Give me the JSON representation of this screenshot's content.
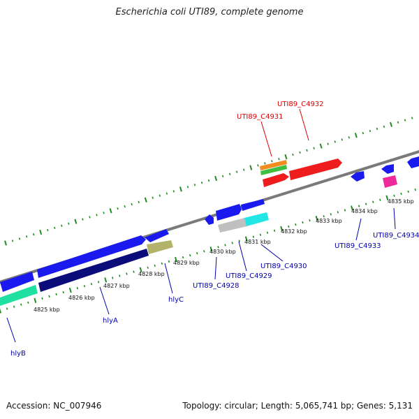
{
  "title": "Escherichia coli UTI89, complete genome",
  "footer": {
    "accession": "Accession: NC_007946",
    "topology": "Topology: circular; Length: 5,065,741 bp; Genes: 5,131"
  },
  "colors": {
    "backbone": "#7a7a7a",
    "tick": "#1f8a1f",
    "forward_label": "#dd0000",
    "reverse_label": "#0000aa"
  },
  "scale_labels": [
    "4825 kbp",
    "4826 kbp",
    "4827 kbp",
    "4828 kbp",
    "4829 kbp",
    "4830 kbp",
    "4831 kbp",
    "4832 kbp",
    "4833 kbp",
    "4834 kbp",
    "4835 kbp"
  ],
  "gene_labels": {
    "forward": [
      "UTI89_C4931",
      "UTI89_C4932"
    ],
    "reverse": [
      "hlyB",
      "hlyA",
      "hlyC",
      "UTI89_C4928",
      "UTI89_C4929",
      "UTI89_C4930",
      "UTI89_C4933",
      "UTI89_C4934"
    ]
  },
  "features": [
    {
      "name": "forward-gene-orange",
      "color": "#f28c1e"
    },
    {
      "name": "forward-gene-green",
      "color": "#3fbf3f"
    },
    {
      "name": "utI89-c4931-gene",
      "color": "#ee1c1c"
    },
    {
      "name": "utI89-c4932-gene",
      "color": "#ee1c1c"
    },
    {
      "name": "upper-blue-gene",
      "color": "#1a1aee"
    },
    {
      "name": "lower-blue-gene",
      "color": "#1a1aee"
    },
    {
      "name": "hlya-gene",
      "color": "#0b0b7a"
    },
    {
      "name": "hlyb-gene",
      "color": "#1fe0a0"
    },
    {
      "name": "hlyc-gene",
      "color": "#b3b36a"
    },
    {
      "name": "utI89-c4929-gene",
      "color": "#c0c0c0"
    },
    {
      "name": "utI89-c4930-gene",
      "color": "#22e6e6"
    },
    {
      "name": "utI89-c4933-gene",
      "color": "#1a1aee"
    },
    {
      "name": "utI89-c4934-gene",
      "color": "#ee2a9a"
    }
  ]
}
